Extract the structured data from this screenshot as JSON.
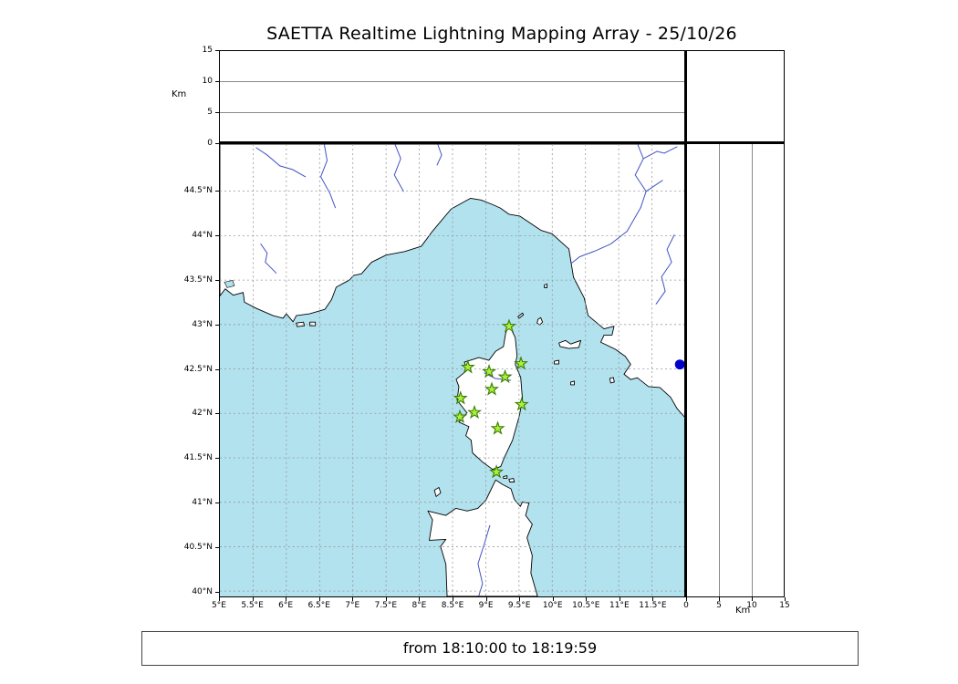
{
  "title": "SAETTA Realtime Lightning Mapping Array - 25/10/26",
  "footer": {
    "text": "from 18:10:00 to 18:19:59"
  },
  "axes": {
    "km_label_top": "Km",
    "km_label_right": "Km",
    "alt_ticks": {
      "values": [
        0,
        5,
        10,
        15
      ],
      "labels": [
        "0",
        "5",
        "10",
        "15"
      ]
    },
    "lon_ticks": {
      "labels": [
        "5°E",
        "5.5°E",
        "6°E",
        "6.5°E",
        "7°E",
        "7.5°E",
        "8°E",
        "8.5°E",
        "9°E",
        "9.5°E",
        "10°E",
        "10.5°E",
        "11°E",
        "11.5°E"
      ]
    },
    "lat_ticks": {
      "labels": [
        "44.5°N",
        "44°N",
        "43.5°N",
        "43°N",
        "42.5°N",
        "42°N",
        "41.5°N",
        "41°N",
        "40.5°N",
        "40°N"
      ]
    }
  },
  "map": {
    "lon_min": 5,
    "lon_max": 12,
    "lat_min": 39.94,
    "lat_max": 45.03
  },
  "colors": {
    "sea": "#b2e2ee",
    "land": "#ffffff",
    "coast": "#000000",
    "river": "#4253c4",
    "grid": "#969696",
    "station_fill": "#aaf03c",
    "station_edge": "#3b7d00",
    "event": "#0000cd"
  },
  "chart_data": {
    "type": "scatter",
    "title": "SAETTA Realtime Lightning Mapping Array - 25/10/26",
    "time_window": {
      "from": "18:10:00",
      "to": "18:19:59"
    },
    "altitude_axis_km": [
      0,
      15
    ],
    "lon_range": [
      5,
      12
    ],
    "lat_range": [
      40,
      45
    ],
    "grid": "dashed 0.5 degree",
    "stations_lonlat": [
      [
        9.35,
        42.98
      ],
      [
        8.73,
        42.52
      ],
      [
        9.05,
        42.47
      ],
      [
        9.53,
        42.56
      ],
      [
        9.29,
        42.41
      ],
      [
        9.09,
        42.27
      ],
      [
        8.62,
        42.17
      ],
      [
        9.54,
        42.1
      ],
      [
        8.83,
        42.01
      ],
      [
        8.61,
        41.96
      ],
      [
        9.18,
        41.83
      ],
      [
        9.16,
        41.34
      ]
    ],
    "events_lonlat": [
      [
        11.92,
        42.55
      ]
    ]
  }
}
